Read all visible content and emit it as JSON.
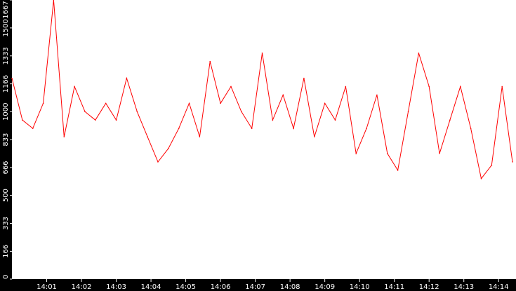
{
  "chart_data": {
    "type": "line",
    "title": "",
    "xlabel": "",
    "ylabel": "",
    "ylim": [
      0,
      1667
    ],
    "y_ticks": [
      0,
      166,
      333,
      500,
      666,
      833,
      1000,
      1166,
      1333,
      1500,
      1667
    ],
    "x_ticks": [
      "14:01",
      "14:02",
      "14:03",
      "14:04",
      "14:05",
      "14:06",
      "14:07",
      "14:08",
      "14:09",
      "14:10",
      "14:11",
      "14:12",
      "14:13",
      "14:14"
    ],
    "x_range_minutes": [
      0,
      14.5
    ],
    "x_tick_minutes": [
      1,
      2,
      3,
      4,
      5,
      6,
      7,
      8,
      9,
      10,
      11,
      12,
      13,
      14
    ],
    "grid": false,
    "colors": {
      "background": "#ffffff",
      "frame": "#000000",
      "line": "#ff0000",
      "text": "#ffffff"
    },
    "series": [
      {
        "color": "#ff0000",
        "x_minutes": [
          0.0,
          0.3,
          0.6,
          0.9,
          1.2,
          1.5,
          1.8,
          2.1,
          2.4,
          2.7,
          3.0,
          3.3,
          3.6,
          3.9,
          4.2,
          4.5,
          4.8,
          5.1,
          5.4,
          5.7,
          6.0,
          6.3,
          6.6,
          6.9,
          7.2,
          7.5,
          7.8,
          8.1,
          8.4,
          8.7,
          9.0,
          9.3,
          9.6,
          9.9,
          10.2,
          10.5,
          10.8,
          11.1,
          11.4,
          11.7,
          12.0,
          12.3,
          12.6,
          12.9,
          13.2,
          13.5,
          13.8,
          14.1,
          14.4
        ],
        "values": [
          1200,
          950,
          900,
          1050,
          1667,
          850,
          1150,
          1000,
          950,
          1050,
          950,
          1200,
          1000,
          850,
          700,
          780,
          900,
          1050,
          850,
          1300,
          1050,
          1150,
          1000,
          900,
          1350,
          950,
          1100,
          900,
          1200,
          850,
          1050,
          950,
          1150,
          750,
          900,
          1100,
          750,
          650,
          1000,
          1350,
          1150,
          750,
          950,
          1150,
          900,
          600,
          680,
          1150,
          700
        ]
      }
    ]
  }
}
